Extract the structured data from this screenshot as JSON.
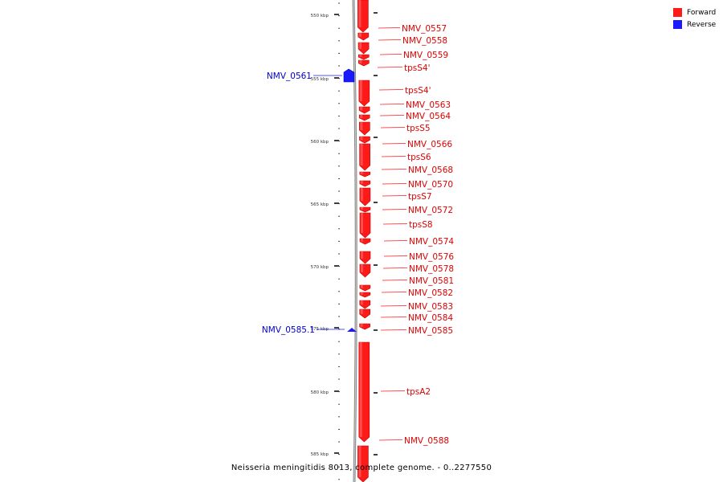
{
  "legend": {
    "forward": {
      "label": "Forward",
      "color": "#ff1a1a"
    },
    "reverse": {
      "label": "Reverse",
      "color": "#1a1aff"
    }
  },
  "caption": "Neisseria meningitidis 8013, complete genome. - 0..2277550",
  "ticks": [
    {
      "label": "550 kbp",
      "kbp": 550
    },
    {
      "label": "555 kbp",
      "kbp": 555
    },
    {
      "label": "560 kbp",
      "kbp": 560
    },
    {
      "label": "565 kbp",
      "kbp": 565
    },
    {
      "label": "570 kbp",
      "kbp": 570
    },
    {
      "label": "575 kbp",
      "kbp": 575
    },
    {
      "label": "580 kbp",
      "kbp": 580
    },
    {
      "label": "585 kbp",
      "kbp": 585
    }
  ],
  "forward_labels": [
    "NMV_0557",
    "NMV_0558",
    "NMV_0559",
    "tpsS4'",
    "tpsS4'",
    "NMV_0563",
    "NMV_0564",
    "tpsS5",
    "NMV_0566",
    "tpsS6",
    "NMV_0568",
    "NMV_0570",
    "tpsS7",
    "NMV_0572",
    "tpsS8",
    "NMV_0574",
    "NMV_0576",
    "NMV_0578",
    "NMV_0581",
    "NMV_0582",
    "NMV_0583",
    "NMV_0584",
    "NMV_0585",
    "tpsA2",
    "NMV_0588"
  ],
  "reverse_labels": [
    "NMV_0561",
    "NMV_0585.1"
  ]
}
